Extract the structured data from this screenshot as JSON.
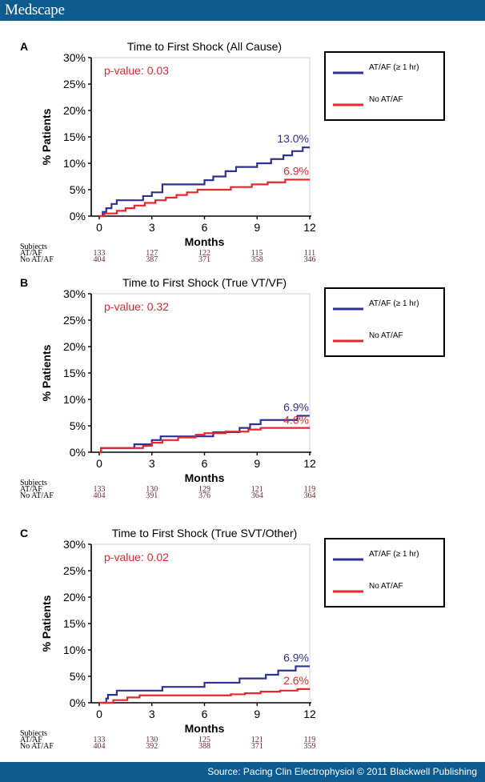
{
  "header": {
    "brand": "Medscape"
  },
  "footer": {
    "source": "Source: Pacing Clin Electrophysiol © 2011 Blackwell Publishing"
  },
  "colors": {
    "atf": "#2e3192",
    "noatf": "#e8262b",
    "bar": "#0e5b8f"
  },
  "chart_data": [
    {
      "type": "line",
      "panel": "A",
      "title": "Time to First Shock (All Cause)",
      "xlabel": "Months",
      "ylabel": "% Patients",
      "xlim": [
        0,
        12
      ],
      "ylim": [
        0,
        30
      ],
      "xticks": [
        "0",
        "3",
        "6",
        "9",
        "12"
      ],
      "yticks": [
        "0%",
        "5%",
        "10%",
        "15%",
        "20%",
        "25%",
        "30%"
      ],
      "pvalue": "p-value: 0.03",
      "legend": [
        "AT/AF (≥ 1 hr)",
        "No AT/AF"
      ],
      "series": [
        {
          "name": "AT/AF (≥ 1 hr)",
          "end_label": "13.0%",
          "points": [
            [
              0,
              0
            ],
            [
              0.2,
              0.8
            ],
            [
              0.4,
              1.5
            ],
            [
              0.7,
              2.3
            ],
            [
              1,
              3
            ],
            [
              2.5,
              3.8
            ],
            [
              3,
              4.5
            ],
            [
              3.6,
              6
            ],
            [
              6,
              6.8
            ],
            [
              6.5,
              7.5
            ],
            [
              7.2,
              8.5
            ],
            [
              7.8,
              9.3
            ],
            [
              9,
              10
            ],
            [
              9.8,
              10.8
            ],
            [
              10.5,
              11.5
            ],
            [
              11,
              12.3
            ],
            [
              11.6,
              13
            ],
            [
              12,
              13
            ]
          ]
        },
        {
          "name": "No AT/AF",
          "end_label": "6.9%",
          "points": [
            [
              0,
              0
            ],
            [
              0.3,
              0.5
            ],
            [
              1,
              1
            ],
            [
              1.5,
              1.5
            ],
            [
              2,
              2
            ],
            [
              2.6,
              2.5
            ],
            [
              3.2,
              3
            ],
            [
              3.8,
              3.5
            ],
            [
              4.4,
              4
            ],
            [
              5,
              4.5
            ],
            [
              5.6,
              5
            ],
            [
              7.5,
              5.5
            ],
            [
              8.7,
              6
            ],
            [
              9.6,
              6.4
            ],
            [
              10.6,
              6.9
            ],
            [
              12,
              6.9
            ]
          ]
        }
      ],
      "risk_table": {
        "header": "Subjects",
        "rows": [
          {
            "label": "AT/AF",
            "values": [
              "133",
              "127",
              "122",
              "115",
              "111"
            ]
          },
          {
            "label": "No AT/AF",
            "values": [
              "404",
              "387",
              "371",
              "358",
              "346"
            ]
          }
        ]
      }
    },
    {
      "type": "line",
      "panel": "B",
      "title": "Time to First Shock (True VT/VF)",
      "xlabel": "Months",
      "ylabel": "% Patients",
      "xlim": [
        0,
        12
      ],
      "ylim": [
        0,
        30
      ],
      "xticks": [
        "0",
        "3",
        "6",
        "9",
        "12"
      ],
      "yticks": [
        "0%",
        "5%",
        "10%",
        "15%",
        "20%",
        "25%",
        "30%"
      ],
      "pvalue": "p-value: 0.32",
      "legend": [
        "AT/AF (≥ 1 hr)",
        "No AT/AF"
      ],
      "series": [
        {
          "name": "AT/AF (≥ 1 hr)",
          "end_label": "6.9%",
          "points": [
            [
              0,
              0
            ],
            [
              0.1,
              0.8
            ],
            [
              2,
              1.5
            ],
            [
              3,
              2.3
            ],
            [
              3.5,
              3
            ],
            [
              6.5,
              3.8
            ],
            [
              8,
              4.6
            ],
            [
              8.6,
              5.3
            ],
            [
              9.2,
              6.1
            ],
            [
              11.3,
              6.9
            ],
            [
              12,
              6.9
            ]
          ]
        },
        {
          "name": "No AT/AF",
          "end_label": "4.6%",
          "points": [
            [
              0,
              0
            ],
            [
              0.1,
              0.8
            ],
            [
              2.5,
              1.2
            ],
            [
              3,
              1.8
            ],
            [
              3.6,
              2.3
            ],
            [
              4.5,
              2.8
            ],
            [
              5.5,
              3.3
            ],
            [
              6,
              3.6
            ],
            [
              7.2,
              3.9
            ],
            [
              8.5,
              4.3
            ],
            [
              9.2,
              4.6
            ],
            [
              12,
              4.6
            ]
          ]
        }
      ],
      "risk_table": {
        "header": "Subjects",
        "rows": [
          {
            "label": "AT/AF",
            "values": [
              "133",
              "130",
              "129",
              "121",
              "119"
            ]
          },
          {
            "label": "No AT/AF",
            "values": [
              "404",
              "391",
              "376",
              "364",
              "364"
            ]
          }
        ]
      }
    },
    {
      "type": "line",
      "panel": "C",
      "title": "Time to First Shock (True SVT/Other)",
      "xlabel": "Months",
      "ylabel": "% Patients",
      "xlim": [
        0,
        12
      ],
      "ylim": [
        0,
        30
      ],
      "xticks": [
        "0",
        "3",
        "6",
        "9",
        "12"
      ],
      "yticks": [
        "0%",
        "5%",
        "10%",
        "15%",
        "20%",
        "25%",
        "30%"
      ],
      "pvalue": "p-value: 0.02",
      "legend": [
        "AT/AF (≥ 1 hr)",
        "No AT/AF"
      ],
      "series": [
        {
          "name": "AT/AF (≥ 1 hr)",
          "end_label": "6.9%",
          "points": [
            [
              0,
              0
            ],
            [
              0.4,
              0.8
            ],
            [
              0.5,
              1.5
            ],
            [
              1,
              2.3
            ],
            [
              3.6,
              3
            ],
            [
              6,
              3.8
            ],
            [
              8,
              4.6
            ],
            [
              9.5,
              5.3
            ],
            [
              10.2,
              6.1
            ],
            [
              11.2,
              6.9
            ],
            [
              12,
              6.9
            ]
          ]
        },
        {
          "name": "No AT/AF",
          "end_label": "2.6%",
          "points": [
            [
              0,
              0
            ],
            [
              0.8,
              0.5
            ],
            [
              1.6,
              1
            ],
            [
              2.3,
              1.4
            ],
            [
              7.5,
              1.6
            ],
            [
              8.3,
              1.8
            ],
            [
              9.2,
              2.1
            ],
            [
              10.3,
              2.3
            ],
            [
              11.3,
              2.6
            ],
            [
              12,
              2.6
            ]
          ]
        }
      ],
      "risk_table": {
        "header": "Subjects",
        "rows": [
          {
            "label": "AT/AF",
            "values": [
              "133",
              "130",
              "125",
              "121",
              "119"
            ]
          },
          {
            "label": "No AT/AF",
            "values": [
              "404",
              "392",
              "388",
              "371",
              "359"
            ]
          }
        ]
      }
    }
  ]
}
